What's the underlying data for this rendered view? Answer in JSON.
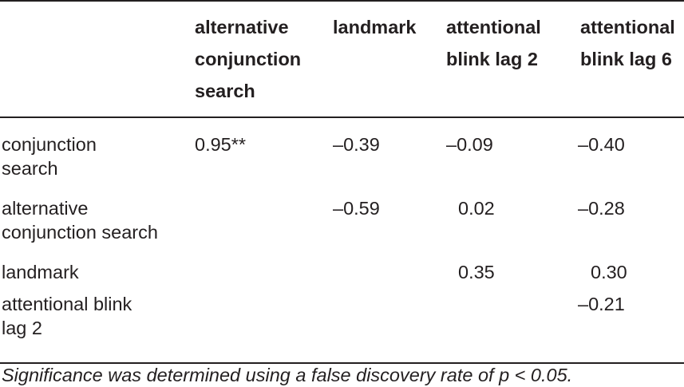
{
  "table": {
    "columns": [
      "",
      "alternative conjunction search",
      "landmark",
      "attentional blink lag 2",
      "attentional blink lag 6"
    ],
    "header_lines": {
      "alt_conj": [
        "alternative",
        "conjunction",
        "search"
      ],
      "landmark": [
        "landmark"
      ],
      "ab_lag2": [
        "attentional",
        "blink lag 2"
      ],
      "ab_lag6": [
        "attentional",
        "blink lag 6"
      ]
    },
    "rows": [
      {
        "label_lines": [
          "conjunction",
          "search"
        ],
        "alt_conj": "0.95**",
        "landmark": "–0.39",
        "ab_lag2": "–0.09",
        "ab_lag6": "–0.40"
      },
      {
        "label_lines": [
          "alternative",
          "conjunction search"
        ],
        "alt_conj": "",
        "landmark": "–0.59",
        "ab_lag2": "0.02",
        "ab_lag6": "–0.28"
      },
      {
        "label_lines": [
          "landmark"
        ],
        "alt_conj": "",
        "landmark": "",
        "ab_lag2": "0.35",
        "ab_lag6": "0.30"
      },
      {
        "label_lines": [
          "attentional blink",
          "lag 2"
        ],
        "alt_conj": "",
        "landmark": "",
        "ab_lag2": "",
        "ab_lag6": "–0.21"
      }
    ]
  },
  "footnote": "Significance was determined using a false discovery rate of p < 0.05."
}
